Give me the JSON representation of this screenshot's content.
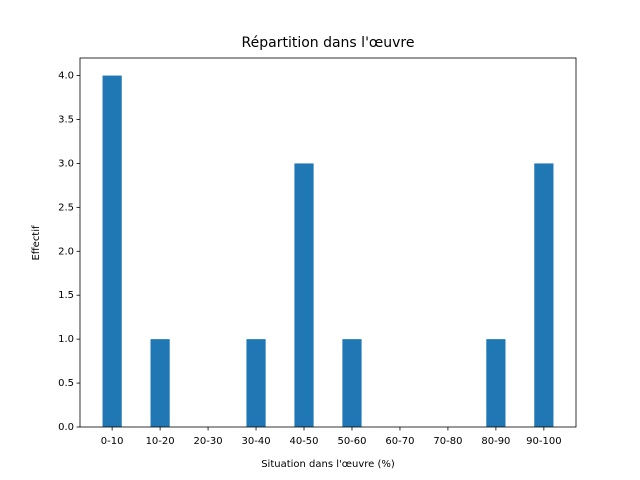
{
  "chart_data": {
    "type": "bar",
    "title": "Répartition dans l'œuvre",
    "xlabel": "Situation dans l'œuvre (%)",
    "ylabel": "Effectif",
    "categories": [
      "0-10",
      "10-20",
      "20-30",
      "30-40",
      "40-50",
      "50-60",
      "60-70",
      "70-80",
      "80-90",
      "90-100"
    ],
    "values": [
      4,
      1,
      0,
      1,
      3,
      1,
      0,
      0,
      1,
      3
    ],
    "color": "#1f77b4",
    "ylim": [
      0,
      4.2
    ],
    "yticks": [
      {
        "value": 0,
        "label": "0.0"
      },
      {
        "value": 0.5,
        "label": "0.5"
      },
      {
        "value": 1,
        "label": "1.0"
      },
      {
        "value": 1.5,
        "label": "1.5"
      },
      {
        "value": 2,
        "label": "2.0"
      },
      {
        "value": 2.5,
        "label": "2.5"
      },
      {
        "value": 3,
        "label": "3.0"
      },
      {
        "value": 3.5,
        "label": "3.5"
      },
      {
        "value": 4,
        "label": "4.0"
      }
    ],
    "grid": false
  }
}
